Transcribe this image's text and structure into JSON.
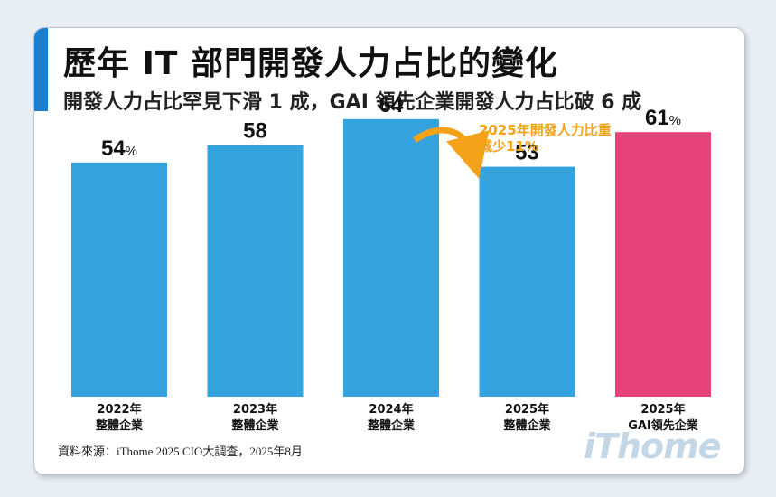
{
  "header": {
    "title": "歷年 IT 部門開發人力占比的變化",
    "subtitle": "開發人力占比罕見下滑 1 成，GAI 領先企業開發人力占比破 6 成"
  },
  "chart_data": {
    "type": "bar",
    "title": "歷年 IT 部門開發人力占比的變化",
    "subtitle": "開發人力占比罕見下滑 1 成，GAI 領先企業開發人力占比破 6 成",
    "unit": "%",
    "ylim": [
      0,
      100
    ],
    "grid": false,
    "categories": [
      {
        "year": "2022年",
        "group": "整體企業"
      },
      {
        "year": "2023年",
        "group": "整體企業"
      },
      {
        "year": "2024年",
        "group": "整體企業"
      },
      {
        "year": "2025年",
        "group": "整體企業"
      },
      {
        "year": "2025年",
        "group": "GAI領先企業"
      }
    ],
    "values": [
      54,
      58,
      64,
      53,
      61
    ],
    "value_labels": [
      {
        "num": "54",
        "unit": "%"
      },
      {
        "num": "58",
        "unit": ""
      },
      {
        "num": "64",
        "unit": ""
      },
      {
        "num": "53",
        "unit": ""
      },
      {
        "num": "61",
        "unit": "%"
      }
    ],
    "bar_colors": [
      "#34a3de",
      "#34a3de",
      "#34a3de",
      "#34a3de",
      "#e5437a"
    ],
    "annotation": {
      "lines": [
        "2025年開發人力比重",
        "減少11%"
      ],
      "color": "#f4a21a"
    }
  },
  "footer": {
    "source": "資料來源：iThome 2025 CIO大調查，2025年8月",
    "logo": "iThome"
  }
}
